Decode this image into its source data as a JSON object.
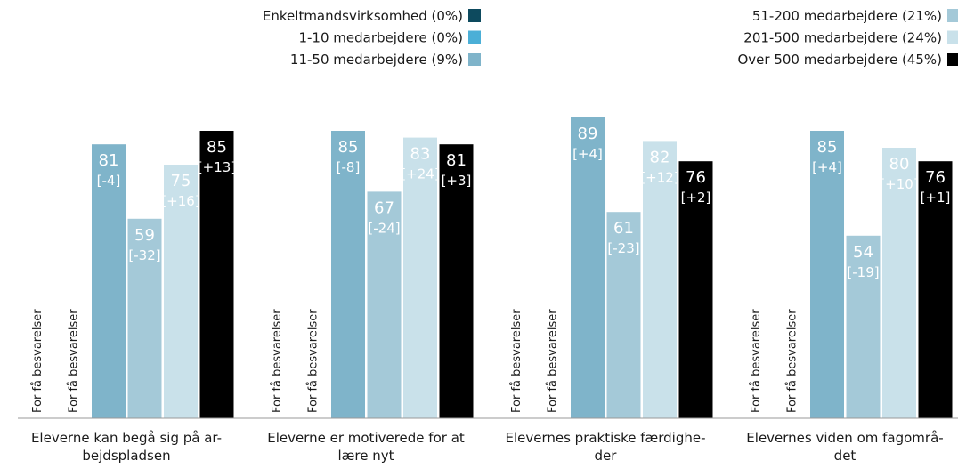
{
  "chart_data": {
    "type": "bar",
    "categories": [
      [
        "Eleverne kan begå sig på ar-",
        "bejdspladsen"
      ],
      [
        "Eleverne er motiverede for at",
        "lære nyt"
      ],
      [
        "Elevernes praktiske færdighe-",
        "der"
      ],
      [
        "Elevernes viden om fagområ-",
        "det"
      ]
    ],
    "series": [
      {
        "name": "Enkeltmandsvirksomhed (0%)",
        "color": "#0d4a5e",
        "values": [
          null,
          null,
          null,
          null
        ]
      },
      {
        "name": "1-10 medarbejdere (0%)",
        "color": "#4bafd7",
        "values": [
          null,
          null,
          null,
          null
        ]
      },
      {
        "name": "11-50 medarbejdere (9%)",
        "color": "#7fb4ca",
        "values": [
          81,
          85,
          89,
          85
        ],
        "changes": [
          "[-4]",
          "[-8]",
          "[+4]",
          "[+4]"
        ]
      },
      {
        "name": "51-200 medarbejdere (21%)",
        "color": "#a4c9d8",
        "values": [
          59,
          67,
          61,
          54
        ],
        "changes": [
          "[-32]",
          "[-24]",
          "[-23]",
          "[-19]"
        ]
      },
      {
        "name": "201-500 medarbejdere (24%)",
        "color": "#c9e1ea",
        "values": [
          75,
          83,
          82,
          80
        ],
        "changes": [
          "[+16]",
          "[+24]",
          "[+12]",
          "[+10]"
        ]
      },
      {
        "name": "Over 500 medarbejdere (45%)",
        "color": "#000000",
        "values": [
          85,
          81,
          76,
          76
        ],
        "changes": [
          "[+13]",
          "[+3]",
          "[+2]",
          "[+1]"
        ]
      }
    ],
    "missing_label": "For få besvarelser",
    "ylim": [
      0,
      100
    ]
  }
}
